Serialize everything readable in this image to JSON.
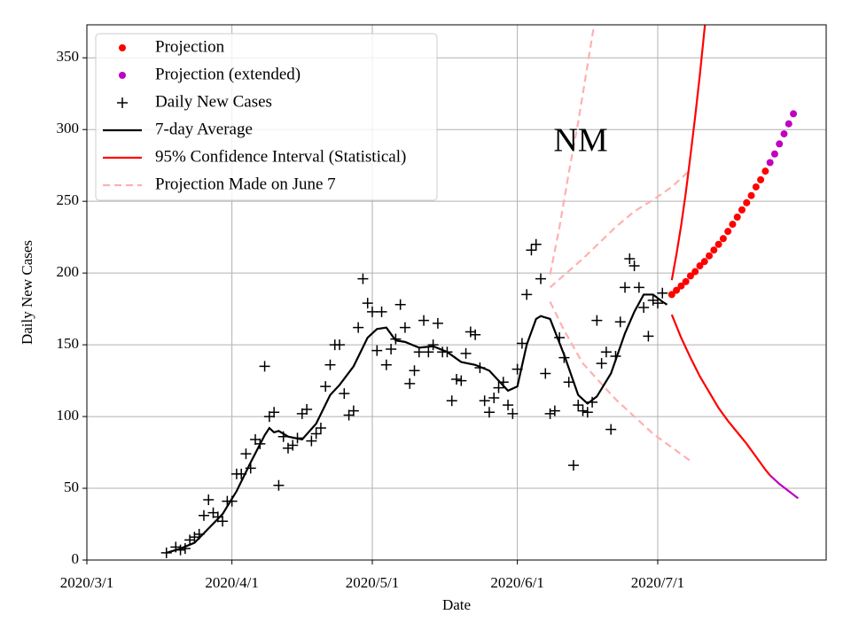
{
  "chart_data": {
    "type": "line",
    "annotation": "NM",
    "x_label": "Date",
    "y_label": "Daily New Cases",
    "xlim": [
      "2020/3/1",
      "2020/8/6"
    ],
    "xticks": [
      "2020/3/1",
      "2020/4/1",
      "2020/5/1",
      "2020/6/1",
      "2020/7/1"
    ],
    "ylim": [
      0,
      373
    ],
    "yticks": [
      0,
      50,
      100,
      150,
      200,
      250,
      300,
      350
    ],
    "grid": true,
    "legend": "upper left",
    "series": [
      {
        "name": "Projection",
        "kind": "dot",
        "color": "#ff0000",
        "x": [
          "2020/7/4",
          "2020/7/5",
          "2020/7/6",
          "2020/7/7",
          "2020/7/8",
          "2020/7/9",
          "2020/7/10",
          "2020/7/11",
          "2020/7/12",
          "2020/7/13",
          "2020/7/14",
          "2020/7/15",
          "2020/7/16",
          "2020/7/17",
          "2020/7/18",
          "2020/7/19",
          "2020/7/20",
          "2020/7/21",
          "2020/7/22",
          "2020/7/23",
          "2020/7/24"
        ],
        "values": [
          185,
          188,
          191,
          194,
          198,
          201,
          205,
          208,
          212,
          216,
          220,
          224,
          229,
          234,
          239,
          244,
          249,
          254,
          260,
          265,
          271
        ]
      },
      {
        "name": "Projection (extended)",
        "kind": "dot",
        "color": "#bf00bf",
        "x": [
          "2020/7/25",
          "2020/7/26",
          "2020/7/27",
          "2020/7/28",
          "2020/7/29",
          "2020/7/30"
        ],
        "values": [
          277,
          283,
          290,
          297,
          304,
          311
        ]
      },
      {
        "name": "Daily New Cases",
        "kind": "plus",
        "color": "#000000",
        "x": [
          "2020/3/18",
          "2020/3/20",
          "2020/3/21",
          "2020/3/22",
          "2020/3/23",
          "2020/3/24",
          "2020/3/25",
          "2020/3/26",
          "2020/3/27",
          "2020/3/28",
          "2020/3/29",
          "2020/3/30",
          "2020/3/31",
          "2020/4/1",
          "2020/4/2",
          "2020/4/3",
          "2020/4/4",
          "2020/4/5",
          "2020/4/6",
          "2020/4/7",
          "2020/4/8",
          "2020/4/9",
          "2020/4/10",
          "2020/4/11",
          "2020/4/12",
          "2020/4/13",
          "2020/4/14",
          "2020/4/15",
          "2020/4/16",
          "2020/4/17",
          "2020/4/18",
          "2020/4/19",
          "2020/4/20",
          "2020/4/21",
          "2020/4/22",
          "2020/4/23",
          "2020/4/24",
          "2020/4/25",
          "2020/4/26",
          "2020/4/27",
          "2020/4/28",
          "2020/4/29",
          "2020/4/30",
          "2020/5/1",
          "2020/5/2",
          "2020/5/3",
          "2020/5/4",
          "2020/5/5",
          "2020/5/6",
          "2020/5/7",
          "2020/5/8",
          "2020/5/9",
          "2020/5/10",
          "2020/5/11",
          "2020/5/12",
          "2020/5/13",
          "2020/5/14",
          "2020/5/15",
          "2020/5/16",
          "2020/5/17",
          "2020/5/18",
          "2020/5/19",
          "2020/5/20",
          "2020/5/21",
          "2020/5/22",
          "2020/5/23",
          "2020/5/24",
          "2020/5/25",
          "2020/5/26",
          "2020/5/27",
          "2020/5/28",
          "2020/5/29",
          "2020/5/30",
          "2020/5/31",
          "2020/6/1",
          "2020/6/2",
          "2020/6/3",
          "2020/6/4",
          "2020/6/5",
          "2020/6/6",
          "2020/6/7",
          "2020/6/8",
          "2020/6/9",
          "2020/6/10",
          "2020/6/11",
          "2020/6/12",
          "2020/6/13",
          "2020/6/14",
          "2020/6/15",
          "2020/6/16",
          "2020/6/17",
          "2020/6/18",
          "2020/6/19",
          "2020/6/20",
          "2020/6/21",
          "2020/6/22",
          "2020/6/23",
          "2020/6/24",
          "2020/6/25",
          "2020/6/26",
          "2020/6/27",
          "2020/6/28",
          "2020/6/29",
          "2020/6/30",
          "2020/7/1",
          "2020/7/2"
        ],
        "values": [
          5,
          9,
          7,
          8,
          14,
          16,
          18,
          31,
          42,
          33,
          30,
          27,
          41,
          41,
          60,
          60,
          74,
          64,
          84,
          81,
          135,
          100,
          103,
          52,
          86,
          78,
          80,
          85,
          102,
          105,
          83,
          88,
          92,
          121,
          136,
          150,
          150,
          116,
          101,
          104,
          162,
          196,
          179,
          173,
          146,
          173,
          136,
          147,
          154,
          178,
          162,
          123,
          132,
          145,
          167,
          145,
          150,
          165,
          145,
          145,
          111,
          126,
          125,
          144,
          159,
          157,
          134,
          111,
          103,
          113,
          120,
          124,
          108,
          102,
          133,
          151,
          185,
          216,
          220,
          196,
          130,
          102,
          104,
          155,
          141,
          124,
          66,
          108,
          104,
          103,
          110,
          167,
          137,
          145,
          91,
          142,
          166,
          190,
          210,
          205,
          190,
          176,
          156,
          181,
          179,
          186
        ]
      },
      {
        "name": "7-day Average",
        "kind": "line",
        "color": "#000000",
        "x": [
          "2020/3/18",
          "2020/3/21",
          "2020/3/24",
          "2020/3/27",
          "2020/3/30",
          "2020/4/2",
          "2020/4/5",
          "2020/4/8",
          "2020/4/9",
          "2020/4/10",
          "2020/4/11",
          "2020/4/13",
          "2020/4/16",
          "2020/4/19",
          "2020/4/22",
          "2020/4/24",
          "2020/4/27",
          "2020/4/30",
          "2020/5/2",
          "2020/5/4",
          "2020/5/6",
          "2020/5/8",
          "2020/5/11",
          "2020/5/14",
          "2020/5/17",
          "2020/5/20",
          "2020/5/23",
          "2020/5/26",
          "2020/5/28",
          "2020/5/30",
          "2020/6/1",
          "2020/6/3",
          "2020/6/5",
          "2020/6/6",
          "2020/6/8",
          "2020/6/11",
          "2020/6/14",
          "2020/6/16",
          "2020/6/18",
          "2020/6/21",
          "2020/6/24",
          "2020/6/26",
          "2020/6/28",
          "2020/6/30",
          "2020/7/2",
          "2020/7/3"
        ],
        "values": [
          5,
          8,
          12,
          22,
          32,
          48,
          68,
          87,
          92,
          89,
          90,
          86,
          84,
          95,
          115,
          122,
          135,
          155,
          161,
          162,
          153,
          152,
          148,
          149,
          145,
          138,
          136,
          132,
          125,
          118,
          121,
          150,
          168,
          170,
          168,
          143,
          115,
          109,
          114,
          130,
          158,
          173,
          185,
          185,
          180,
          178
        ]
      },
      {
        "name": "95% Confidence Interval (Statistical)",
        "kind": "line",
        "color": "#ff0000",
        "x": [
          "2020/7/4",
          "2020/7/5",
          "2020/7/6",
          "2020/7/7",
          "2020/7/8",
          "2020/7/9",
          "2020/7/10",
          "2020/7/11",
          "2020/7/12"
        ],
        "values": [
          195,
          213,
          233,
          256,
          282,
          309,
          338,
          370,
          404
        ]
      },
      {
        "kind": "line",
        "color": "#ff0000",
        "x": [
          "2020/7/4",
          "2020/7/6",
          "2020/7/8",
          "2020/7/10",
          "2020/7/12",
          "2020/7/14",
          "2020/7/16",
          "2020/7/18",
          "2020/7/20",
          "2020/7/22",
          "2020/7/24",
          "2020/7/25"
        ],
        "values": [
          171,
          155,
          141,
          128,
          117,
          106,
          97,
          89,
          81,
          72,
          63,
          59
        ]
      },
      {
        "kind": "line",
        "color": "#bf00bf",
        "x": [
          "2020/7/25",
          "2020/7/27",
          "2020/7/29",
          "2020/7/31"
        ],
        "values": [
          59,
          53,
          48,
          43
        ]
      },
      {
        "name": "Projection Made on June 7",
        "kind": "dashed",
        "color": "#ffb0b0",
        "x": [
          "2020/6/8",
          "2020/6/15",
          "2020/6/22",
          "2020/6/26",
          "2020/6/30",
          "2020/7/4",
          "2020/7/8"
        ],
        "values": [
          190,
          210,
          232,
          243,
          251,
          260,
          272
        ]
      },
      {
        "kind": "dashed",
        "color": "#ffb0b0",
        "x": [
          "2020/6/8",
          "2020/6/10",
          "2020/6/12",
          "2020/6/14",
          "2020/6/16",
          "2020/6/18"
        ],
        "values": [
          199,
          232,
          270,
          305,
          345,
          385
        ]
      },
      {
        "kind": "dashed",
        "color": "#ffb0b0",
        "x": [
          "2020/6/8",
          "2020/6/11",
          "2020/6/15",
          "2020/6/22",
          "2020/6/30",
          "2020/7/8"
        ],
        "values": [
          180,
          160,
          137,
          112,
          88,
          69
        ]
      }
    ]
  }
}
